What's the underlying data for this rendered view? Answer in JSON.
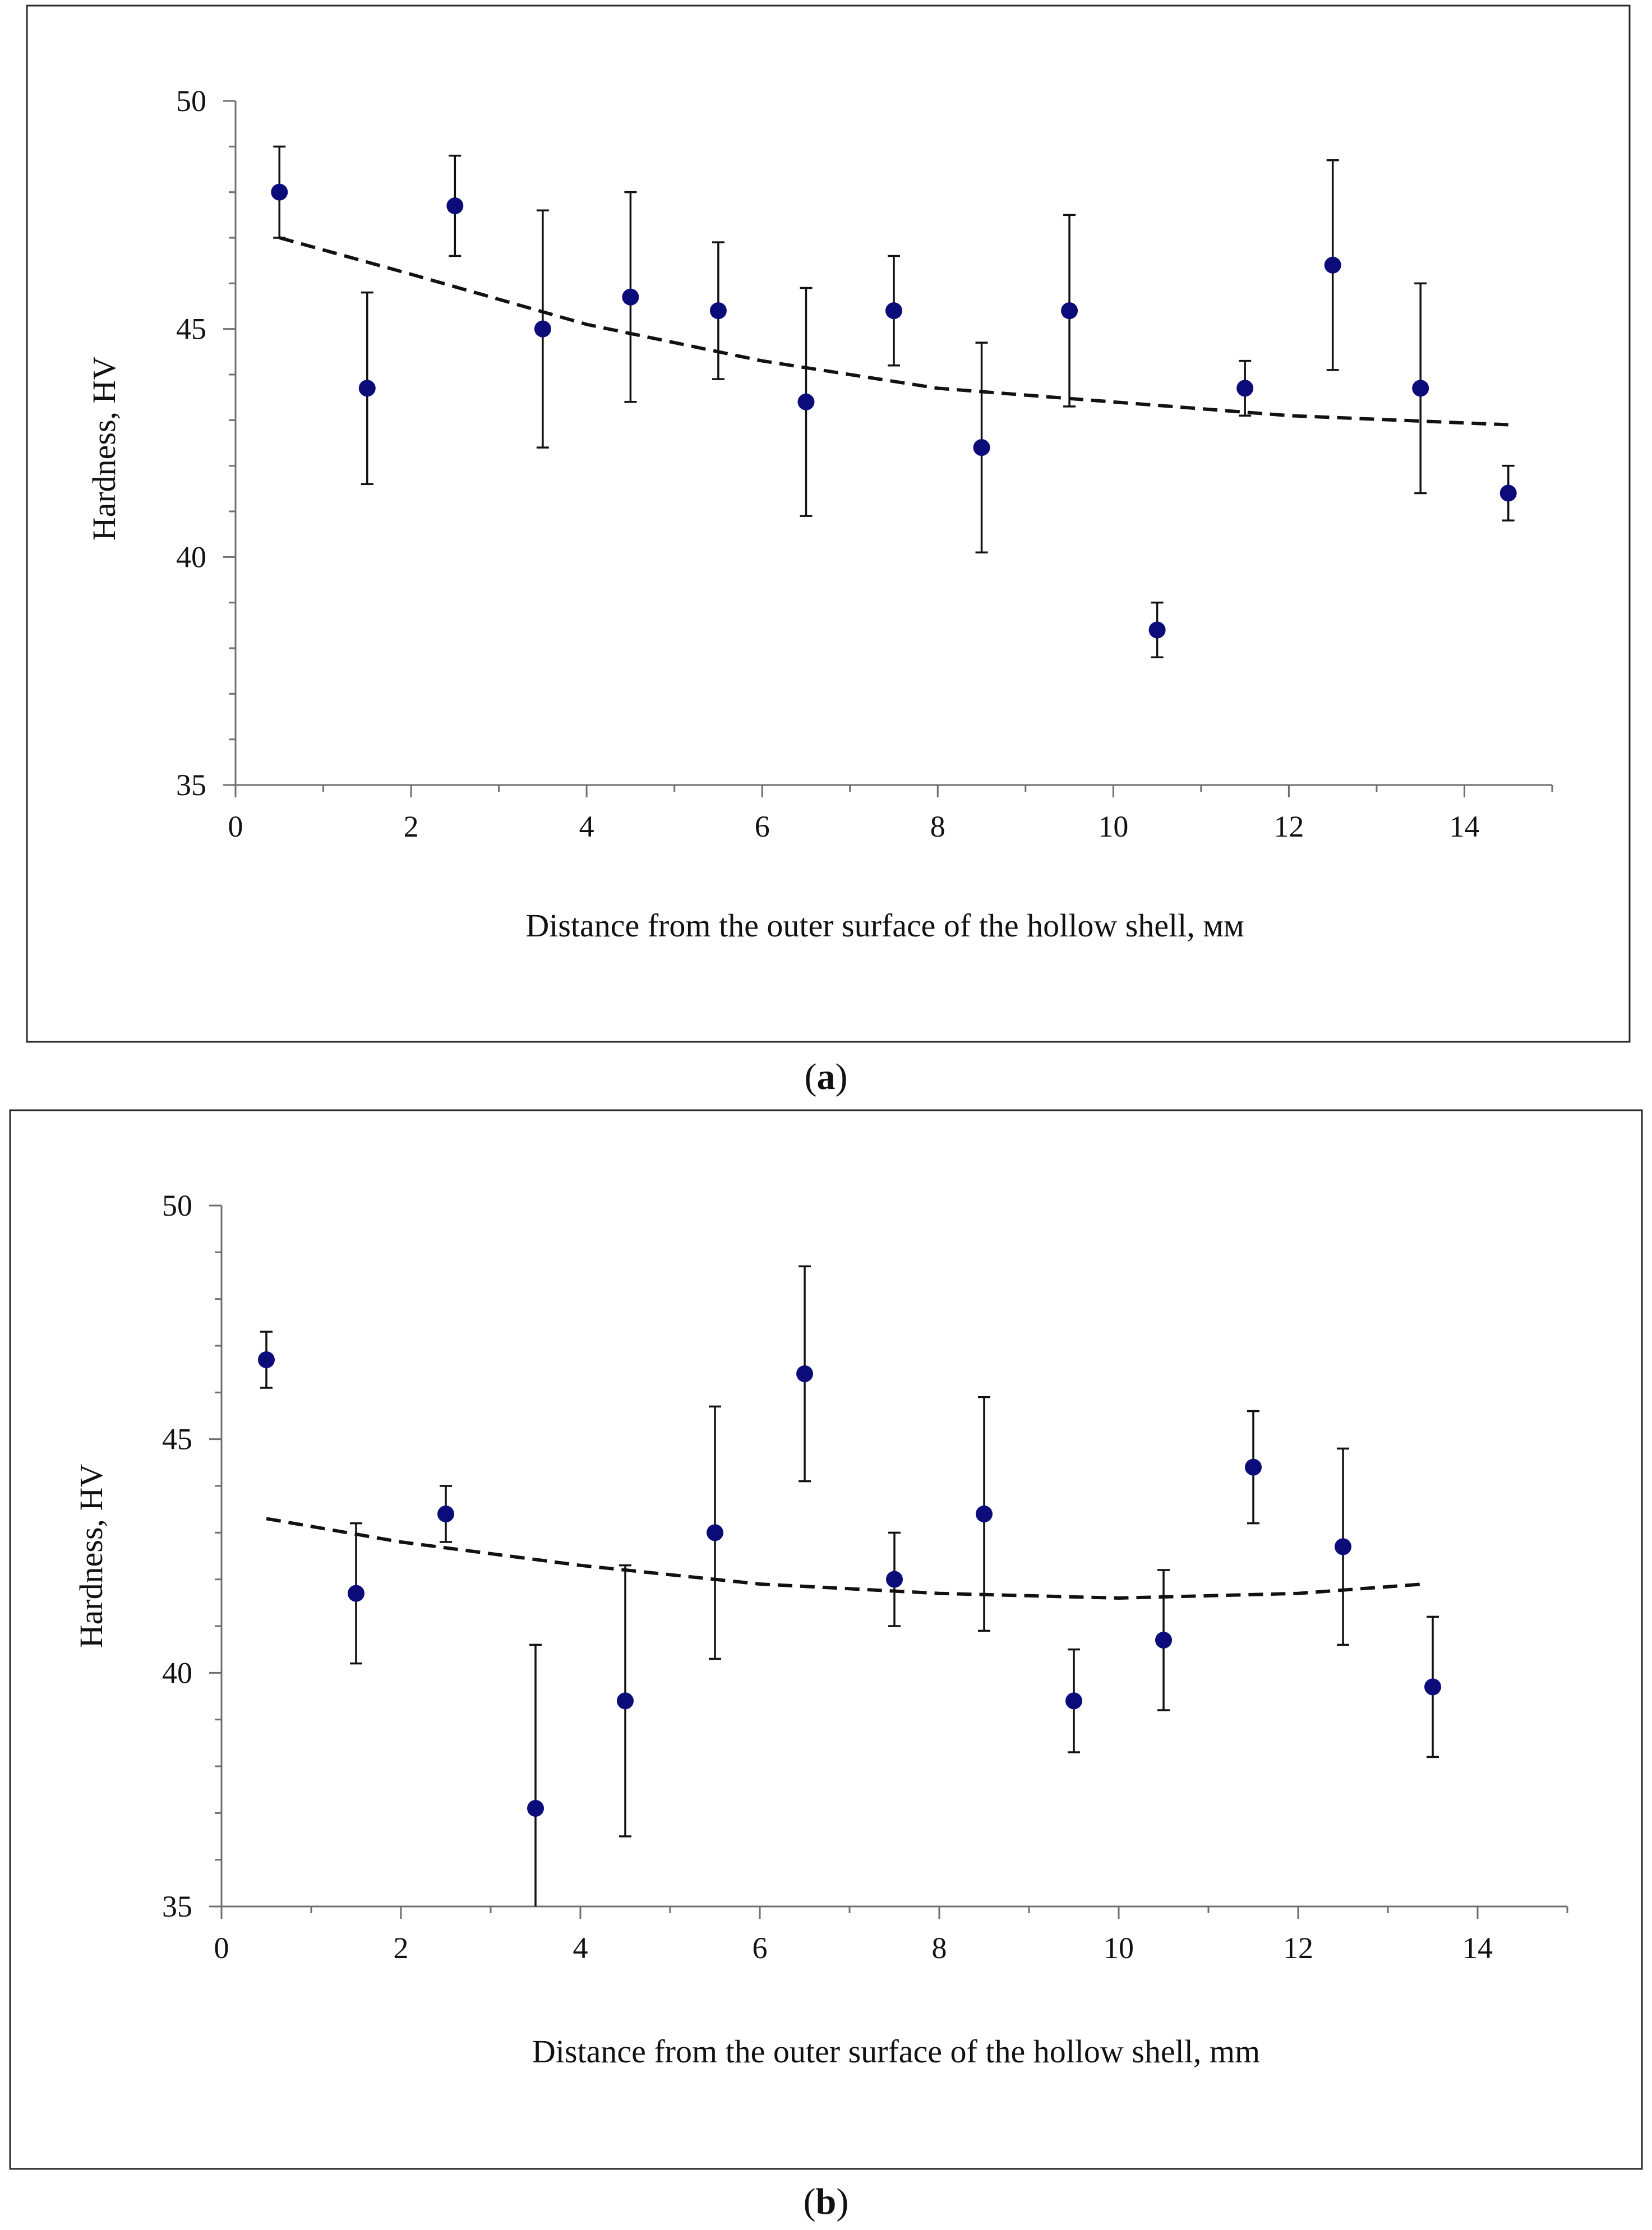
{
  "chart_data": [
    {
      "type": "scatter",
      "panel_label": "a",
      "xlabel": "Distance from the outer surface of the hollow shell, мм",
      "ylabel": "Hardness, HV",
      "xlim": [
        0,
        15
      ],
      "ylim": [
        35,
        50
      ],
      "xticks": [
        0,
        2,
        4,
        6,
        8,
        10,
        12,
        14
      ],
      "yticks": [
        35,
        40,
        45,
        50
      ],
      "grid": false,
      "series": [
        {
          "name": "Hardness",
          "color": "#0b0b7a",
          "x": [
            0.5,
            1.5,
            2.5,
            3.5,
            4.5,
            5.5,
            6.5,
            7.5,
            8.5,
            9.5,
            10.5,
            11.5,
            12.5,
            13.5,
            14.5
          ],
          "y": [
            48.0,
            43.7,
            47.7,
            45.0,
            45.7,
            45.4,
            43.4,
            45.4,
            42.4,
            45.4,
            38.4,
            43.7,
            46.4,
            43.7,
            41.4
          ],
          "err": [
            1.0,
            2.1,
            1.1,
            2.6,
            2.3,
            1.5,
            2.5,
            1.2,
            2.3,
            2.1,
            0.6,
            0.6,
            2.3,
            2.3,
            0.6
          ]
        }
      ],
      "trendline": {
        "style": "dashed",
        "x": [
          0.5,
          2,
          4,
          6,
          8,
          10,
          12,
          14.5
        ],
        "y": [
          47.0,
          46.2,
          45.1,
          44.3,
          43.7,
          43.4,
          43.1,
          42.9
        ]
      }
    },
    {
      "type": "scatter",
      "panel_label": "b",
      "xlabel": "Distance from the outer surface of the hollow shell, mm",
      "ylabel": "Hardness, HV",
      "xlim": [
        0,
        15
      ],
      "ylim": [
        35,
        50
      ],
      "xticks": [
        0,
        2,
        4,
        6,
        8,
        10,
        12,
        14
      ],
      "yticks": [
        35,
        40,
        45,
        50
      ],
      "grid": false,
      "series": [
        {
          "name": "Hardness",
          "color": "#0b0b7a",
          "x": [
            0.5,
            1.5,
            2.5,
            3.5,
            4.5,
            5.5,
            6.5,
            7.5,
            8.5,
            9.5,
            10.5,
            11.5,
            12.5,
            13.5
          ],
          "y": [
            46.7,
            41.7,
            43.4,
            37.1,
            39.4,
            43.0,
            46.4,
            42.0,
            43.4,
            39.4,
            40.7,
            44.4,
            42.7,
            39.7
          ],
          "err": [
            0.6,
            1.5,
            0.6,
            3.5,
            2.9,
            2.7,
            2.3,
            1.0,
            2.5,
            1.1,
            1.5,
            1.2,
            2.1,
            1.5
          ]
        }
      ],
      "trendline": {
        "style": "dashed",
        "x": [
          0.5,
          2,
          4,
          6,
          8,
          10,
          12,
          13.4
        ],
        "y": [
          43.3,
          42.8,
          42.3,
          41.9,
          41.7,
          41.6,
          41.7,
          41.9
        ]
      }
    }
  ]
}
